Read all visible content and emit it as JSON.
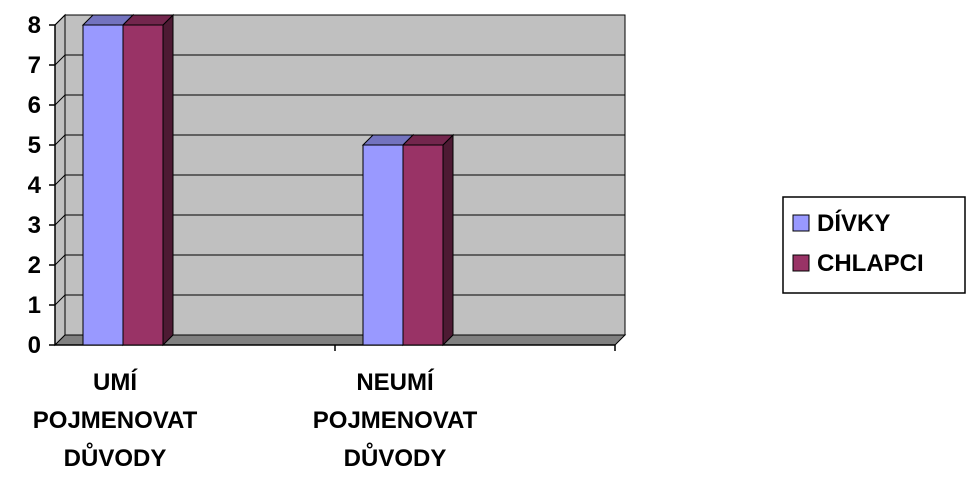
{
  "chart_data": {
    "type": "bar",
    "title": "",
    "xlabel": "",
    "ylabel": "",
    "ylim": [
      0,
      8
    ],
    "yticks": [
      0,
      1,
      2,
      3,
      4,
      5,
      6,
      7,
      8
    ],
    "ytick_labels": [
      "0",
      "1",
      "2",
      "3",
      "4",
      "5",
      "6",
      "7",
      "8"
    ],
    "grid": true,
    "categories": [
      [
        "UMÍ",
        "POJMENOVAT",
        "DŮVODY"
      ],
      [
        "NEUMÍ",
        "POJMENOVAT",
        "DŮVODY"
      ]
    ],
    "series": [
      {
        "name": "DÍVKY",
        "values": [
          8,
          5
        ]
      },
      {
        "name": "CHLAPCI",
        "values": [
          8,
          5
        ]
      }
    ],
    "legend_position": "right"
  },
  "colors": {
    "plot_background": "#c0c0c0",
    "floor": "#808080",
    "series": [
      {
        "front": "#9999ff",
        "top": "#7373bf",
        "side": "#4d4d80"
      },
      {
        "front": "#993366",
        "top": "#73264d",
        "side": "#4d1a33"
      }
    ]
  }
}
